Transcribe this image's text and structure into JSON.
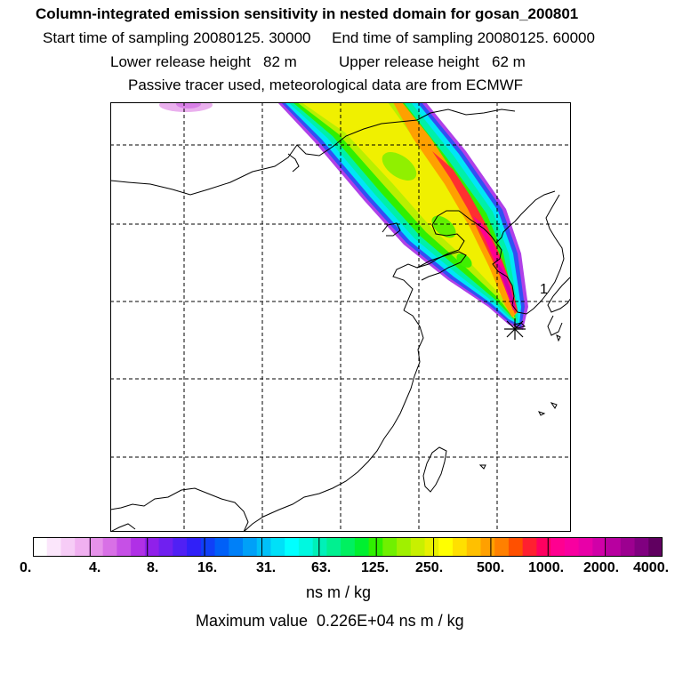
{
  "title": "Column-integrated emission sensitivity in nested domain for gosan_200801",
  "sampling": {
    "start": "Start time of sampling 20080125. 30000",
    "end": "End time of sampling 20080125. 60000"
  },
  "release": {
    "lower": "Lower release height   82 m",
    "upper": "Upper release height   62 m"
  },
  "note": "Passive tracer used, meteorological data are from ECMWF",
  "map": {
    "plume_label": "1",
    "receptor": "star-marker"
  },
  "colorbar": {
    "ticks": [
      "0.",
      "4.",
      "8.",
      "16.",
      "31.",
      "63.",
      "125.",
      "250.",
      "500.",
      "1000.",
      "2000.",
      "4000."
    ],
    "colors": [
      "#ffffff",
      "#fbe6fb",
      "#f6ccf6",
      "#f0b0f0",
      "#e692ea",
      "#d870e6",
      "#c650e6",
      "#b030e6",
      "#9020ea",
      "#7020f0",
      "#5020f4",
      "#3020f8",
      "#1040f8",
      "#0060f8",
      "#0080f8",
      "#00a0f8",
      "#00c0f8",
      "#00e0f8",
      "#00ffff",
      "#00f8e0",
      "#00f0b8",
      "#00f090",
      "#00f060",
      "#00f030",
      "#30f000",
      "#70f000",
      "#a0f000",
      "#c8f000",
      "#e8f000",
      "#ffff00",
      "#ffe000",
      "#ffc000",
      "#ffa000",
      "#ff8000",
      "#ff5000",
      "#ff2030",
      "#ff0060",
      "#ff0090",
      "#f800a0",
      "#e800a8",
      "#d000a8",
      "#b800a0",
      "#9c0090",
      "#800080",
      "#600060"
    ],
    "units": "ns m / kg"
  },
  "max_value": "Maximum value  0.226E+04 ns m / kg"
}
